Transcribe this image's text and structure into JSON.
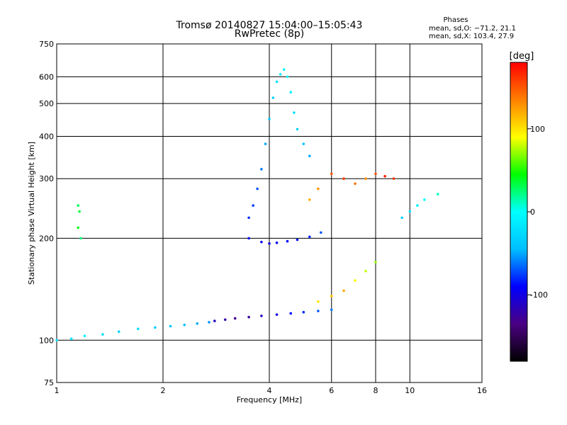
{
  "chart_data": {
    "type": "scatter",
    "title": "Tromsø 20140827 15:04:00–15:05:43",
    "subtitle": "RwPretec (8p)",
    "xlabel": "Frequency [MHz]",
    "ylabel": "Stationary phase Virtual Height [km]",
    "x_scale": "log",
    "y_scale": "log",
    "xlim": [
      1,
      16
    ],
    "ylim": [
      75,
      750
    ],
    "x_ticks": [
      1,
      2,
      4,
      6,
      8,
      10,
      16
    ],
    "y_ticks": [
      75,
      100,
      200,
      300,
      400,
      500,
      600,
      750
    ],
    "grid": true,
    "stats_header": "Phases",
    "stats_lines": [
      "mean, sd,O: −71.2, 21.1",
      "mean, sd,X: 103.4, 27.9"
    ],
    "colorbar": {
      "label": "[deg]",
      "range": [
        -180,
        180
      ],
      "ticks": [
        100,
        0,
        -100
      ],
      "colors": [
        "#000000",
        "#4b0082",
        "#0000ff",
        "#00bfff",
        "#00ffff",
        "#00ff00",
        "#ffff00",
        "#ff8000",
        "#ff0000"
      ]
    },
    "series": [
      {
        "x": [
          1.0,
          1.1,
          1.2,
          1.35,
          1.5,
          1.7,
          1.9,
          2.1,
          2.3,
          2.5,
          2.7
        ],
        "y": [
          100,
          101,
          103,
          104,
          106,
          108,
          109,
          110,
          111,
          112,
          113
        ],
        "phase": [
          -20,
          -15,
          -10,
          -25,
          -30,
          -20,
          -35,
          -40,
          -45,
          -50,
          -55
        ]
      },
      {
        "x": [
          2.8,
          3.0,
          3.2,
          3.5,
          3.8,
          4.2,
          4.6,
          5.0,
          5.5,
          6.0
        ],
        "y": [
          114,
          115,
          116,
          117,
          118,
          119,
          120,
          121,
          122,
          123
        ],
        "phase": [
          -110,
          -120,
          -130,
          -125,
          -115,
          -100,
          -90,
          -80,
          -70,
          -60
        ]
      },
      {
        "x": [
          3.5,
          3.6,
          3.7,
          3.8,
          3.9,
          4.0,
          4.1,
          4.2,
          4.3,
          4.4,
          4.5,
          4.6,
          4.7,
          4.8,
          5.0,
          5.2
        ],
        "y": [
          230,
          250,
          280,
          320,
          380,
          450,
          520,
          580,
          610,
          630,
          600,
          540,
          470,
          420,
          380,
          350
        ],
        "phase": [
          -80,
          -75,
          -70,
          -60,
          -50,
          -40,
          -30,
          -20,
          -10,
          -5,
          0,
          -10,
          -20,
          -30,
          -40,
          -50
        ]
      },
      {
        "x": [
          3.5,
          3.8,
          4.0,
          4.2,
          4.5,
          4.8,
          5.2,
          5.6
        ],
        "y": [
          200,
          195,
          193,
          194,
          196,
          198,
          202,
          208
        ],
        "phase": [
          -90,
          -95,
          -100,
          -95,
          -90,
          -85,
          -80,
          -70
        ]
      },
      {
        "x": [
          5.2,
          5.5,
          6.0,
          6.5,
          7.0,
          7.5,
          8.0,
          8.5,
          9.0
        ],
        "y": [
          260,
          280,
          310,
          300,
          290,
          300,
          310,
          305,
          300
        ],
        "phase": [
          120,
          130,
          150,
          160,
          140,
          130,
          150,
          170,
          160
        ]
      },
      {
        "x": [
          5.5,
          6.0,
          6.5,
          7.0,
          7.5,
          8.0
        ],
        "y": [
          130,
          135,
          140,
          150,
          160,
          170
        ],
        "phase": [
          100,
          110,
          120,
          90,
          80,
          70
        ]
      },
      {
        "x": [
          9.5,
          10.0,
          10.5,
          11.0,
          12.0
        ],
        "y": [
          230,
          240,
          250,
          260,
          270
        ],
        "phase": [
          -30,
          -20,
          -10,
          0,
          10
        ]
      },
      {
        "x": [
          1.15,
          1.16,
          1.15,
          1.17
        ],
        "y": [
          250,
          240,
          215,
          200
        ],
        "phase": [
          30,
          35,
          40,
          25
        ]
      }
    ]
  }
}
